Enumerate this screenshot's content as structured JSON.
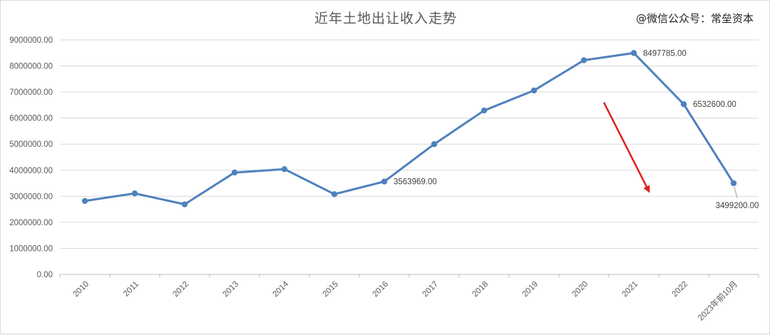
{
  "watermark": "@微信公众号：常垒资本",
  "chart_data": {
    "type": "line",
    "title": "近年土地出让收入走势",
    "xlabel": "",
    "ylabel": "",
    "categories": [
      "2010",
      "2011",
      "2012",
      "2013",
      "2014",
      "2015",
      "2016",
      "2017",
      "2018",
      "2019",
      "2020",
      "2021",
      "2022",
      "2023年前10月"
    ],
    "series": [
      {
        "values": [
          2820000,
          3110000,
          2690000,
          3910000,
          4040000,
          3080000,
          3563969,
          5000000,
          6290000,
          7060000,
          8220000,
          8497785,
          6532600,
          3499200
        ],
        "color": "#4f81bd"
      }
    ],
    "data_labels": [
      {
        "index": 6,
        "text": "3563969.00"
      },
      {
        "index": 11,
        "text": "8497785.00"
      },
      {
        "index": 12,
        "text": "6532600.00"
      },
      {
        "index": 13,
        "text": "3499200.00"
      }
    ],
    "ylim": [
      0,
      9000000
    ],
    "yticks": [
      "0.00",
      "1000000.00",
      "2000000.00",
      "3000000.00",
      "4000000.00",
      "5000000.00",
      "6000000.00",
      "7000000.00",
      "8000000.00",
      "9000000.00"
    ],
    "grid": true,
    "legend": "none",
    "annotation_arrow": {
      "color": "#e02020",
      "from": {
        "x": 11,
        "y": 6600000
      },
      "to": {
        "x": 12,
        "y": 3200000
      }
    }
  }
}
